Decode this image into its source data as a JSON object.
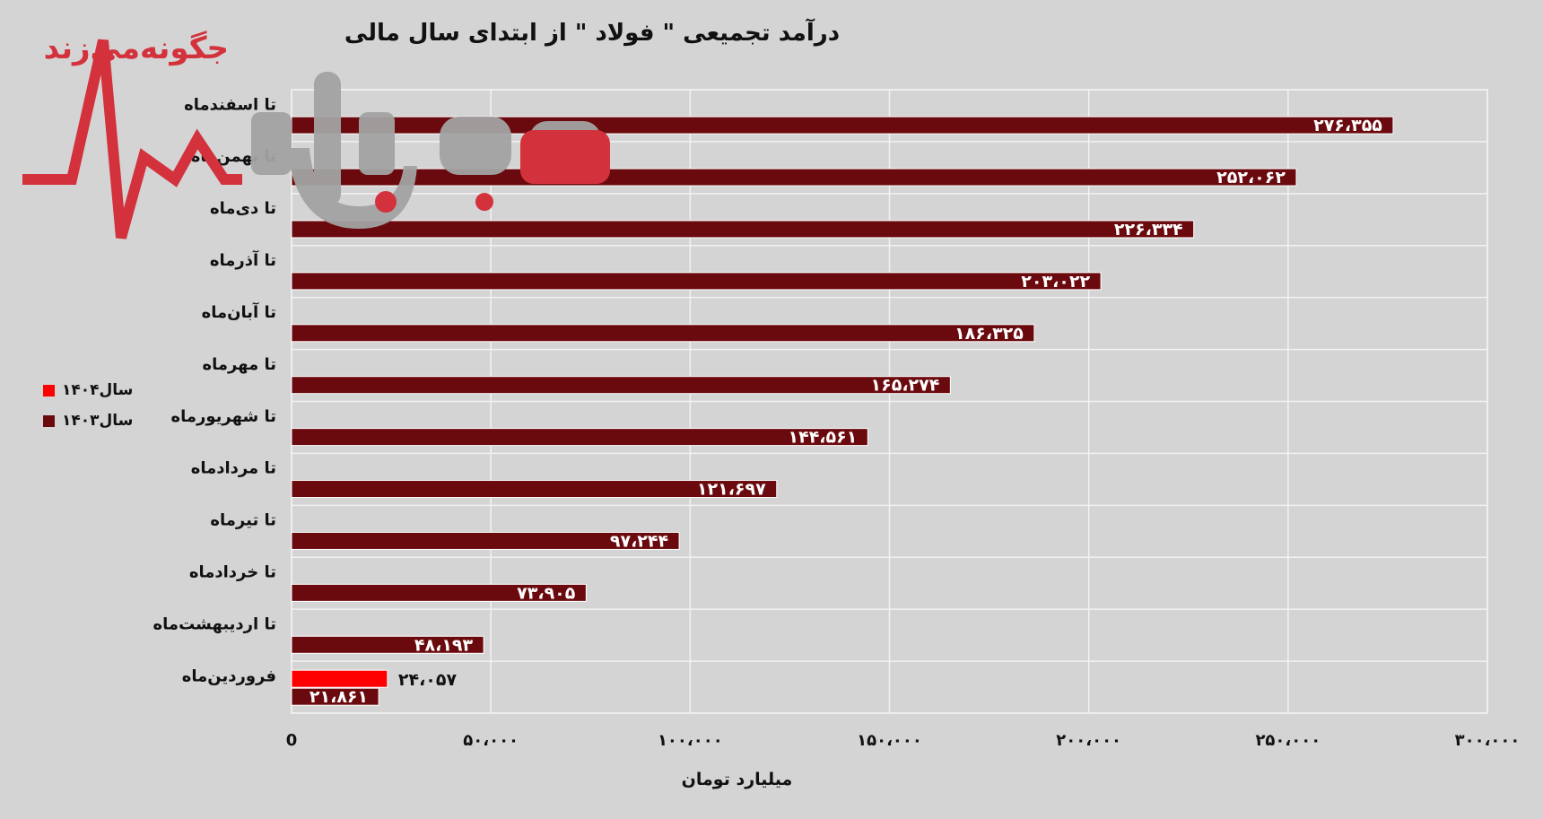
{
  "watermark_text": "جگونه‌می‌زند",
  "chart_data": {
    "type": "bar",
    "orientation": "horizontal",
    "title": "درآمد تجمیعی \" فولاد \" از ابتدای سال مالی",
    "xlabel": "میلیارد تومان",
    "ylabel": "",
    "xlim": [
      0,
      300000
    ],
    "x_ticks": [
      "0",
      "۵۰،۰۰۰",
      "۱۰۰،۰۰۰",
      "۱۵۰،۰۰۰",
      "۲۰۰،۰۰۰",
      "۲۵۰،۰۰۰",
      "۳۰۰،۰۰۰"
    ],
    "x_tick_values": [
      0,
      50000,
      100000,
      150000,
      200000,
      250000,
      300000
    ],
    "grid": true,
    "legend_position": "left",
    "categories": [
      "تا اسفندماه",
      "تا بهمن‌ماه",
      "تا دی‌ماه",
      "تا آذرماه",
      "تا آبان‌ماه",
      "تا مهرماه",
      "تا شهریورماه",
      "تا مردادماه",
      "تا تیرماه",
      "تا خردادماه",
      "تا اردیبهشت‌ماه",
      "فروردین‌ماه"
    ],
    "series": [
      {
        "name": "سال۱۴۰۴",
        "color": "#ff0000",
        "values": [
          null,
          null,
          null,
          null,
          null,
          null,
          null,
          null,
          null,
          null,
          null,
          24057
        ],
        "labels": [
          "",
          "",
          "",
          "",
          "",
          "",
          "",
          "",
          "",
          "",
          "",
          "۲۴،۰۵۷"
        ]
      },
      {
        "name": "سال۱۴۰۳",
        "color": "#6b0a0e",
        "values": [
          276355,
          252062,
          226334,
          203022,
          186325,
          165274,
          144561,
          121697,
          97244,
          73905,
          48193,
          21861
        ],
        "labels": [
          "۲۷۶،۳۵۵",
          "۲۵۲،۰۶۲",
          "۲۲۶،۳۳۴",
          "۲۰۳،۰۲۲",
          "۱۸۶،۳۲۵",
          "۱۶۵،۲۷۴",
          "۱۴۴،۵۶۱",
          "۱۲۱،۶۹۷",
          "۹۷،۲۴۴",
          "۷۳،۹۰۵",
          "۴۸،۱۹۳",
          "۲۱،۸۶۱"
        ]
      }
    ]
  }
}
